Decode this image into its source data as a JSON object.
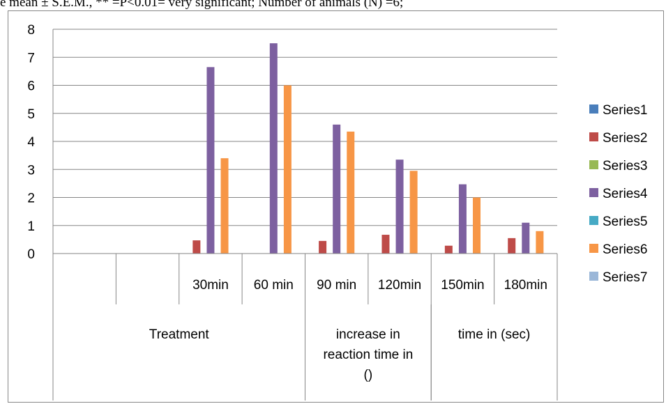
{
  "caption": "e mean ± S.E.M., ** =P<0.01= very significant; Number of animals (N) =6;",
  "colors": {
    "grid": "#868686",
    "series": [
      "#4a7ebb",
      "#be4b48",
      "#98b954",
      "#7d60a0",
      "#46aac5",
      "#f79646",
      "#9bb7d8"
    ]
  },
  "chart_data": {
    "type": "bar",
    "categories": [
      "",
      "",
      "30min",
      "60 min",
      "90 min",
      "120min",
      "150min",
      "180min"
    ],
    "group_labels": [
      {
        "text": [
          "Treatment"
        ],
        "span": [
          0,
          3
        ]
      },
      {
        "text": [
          "increase in",
          "reaction time in",
          "()"
        ],
        "span": [
          4,
          5
        ]
      },
      {
        "text": [
          "time in (sec)"
        ],
        "span": [
          6,
          7
        ]
      }
    ],
    "ylim": [
      0,
      8
    ],
    "yticks": [
      "0",
      "1",
      "2",
      "3",
      "4",
      "5",
      "6",
      "7",
      "8"
    ],
    "grid": true,
    "legend_position": "right",
    "series": [
      {
        "name": "Series1",
        "values": [
          null,
          null,
          null,
          null,
          null,
          null,
          null,
          null
        ]
      },
      {
        "name": "Series2",
        "values": [
          null,
          null,
          0.47,
          null,
          0.45,
          0.67,
          0.28,
          0.55
        ]
      },
      {
        "name": "Series3",
        "values": [
          null,
          null,
          null,
          null,
          null,
          null,
          null,
          null
        ]
      },
      {
        "name": "Series4",
        "values": [
          null,
          null,
          6.65,
          7.5,
          4.6,
          3.35,
          2.47,
          1.1
        ]
      },
      {
        "name": "Series5",
        "values": [
          null,
          null,
          null,
          null,
          null,
          null,
          null,
          null
        ]
      },
      {
        "name": "Series6",
        "values": [
          null,
          null,
          3.4,
          6.0,
          4.35,
          2.95,
          2.0,
          0.8
        ]
      },
      {
        "name": "Series7",
        "values": [
          null,
          null,
          null,
          null,
          null,
          null,
          null,
          null
        ]
      }
    ]
  }
}
